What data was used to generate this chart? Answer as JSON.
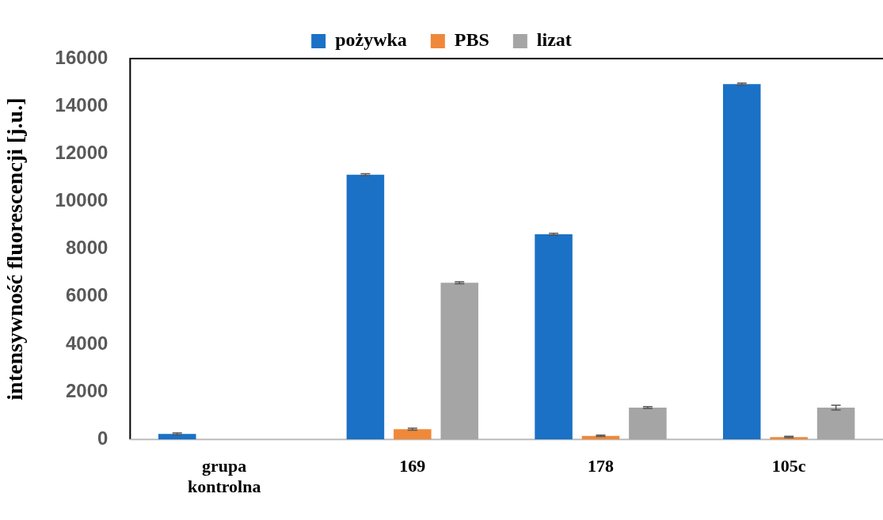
{
  "chart_data": {
    "type": "bar",
    "ylabel": "intensywność fluorescencji [j.u.]",
    "categories": [
      "grupa kontrolna",
      "169",
      "178",
      "105c"
    ],
    "series": [
      {
        "name": "pożywka",
        "color": "#1a71c6",
        "values": [
          230,
          11120,
          8620,
          14930
        ],
        "errors": [
          40,
          40,
          40,
          40
        ]
      },
      {
        "name": "PBS",
        "color": "#f0883a",
        "values": [
          null,
          430,
          150,
          100
        ],
        "errors": [
          null,
          40,
          30,
          30
        ]
      },
      {
        "name": "lizat",
        "color": "#a5a5a5",
        "values": [
          null,
          6580,
          1340,
          1340
        ],
        "errors": [
          null,
          40,
          40,
          100
        ]
      }
    ],
    "ylim": [
      0,
      16000
    ],
    "yticks": [
      0,
      2000,
      4000,
      6000,
      8000,
      10000,
      12000,
      14000,
      16000
    ],
    "grid": false,
    "legend": "top"
  }
}
